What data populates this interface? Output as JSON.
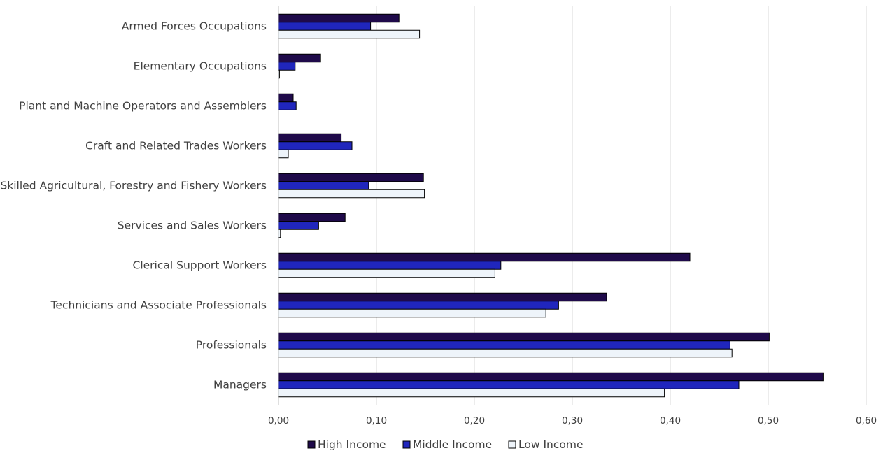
{
  "chart_data": {
    "type": "bar",
    "orientation": "horizontal",
    "title": "",
    "xlabel": "",
    "ylabel": "",
    "categories": [
      "Armed Forces Occupations",
      "Elementary Occupations",
      "Plant and Machine Operators and Assemblers",
      "Craft and Related Trades Workers",
      "Skilled Agricultural, Forestry and Fishery Workers",
      "Services and Sales Workers",
      "Clerical Support Workers",
      "Technicians and Associate Professionals",
      "Professionals",
      "Managers"
    ],
    "series": [
      {
        "name": "High Income",
        "color": "#1f0a4a",
        "values": [
          0.123,
          0.043,
          0.015,
          0.064,
          0.148,
          0.068,
          0.42,
          0.335,
          0.501,
          0.556
        ]
      },
      {
        "name": "Middle Income",
        "color": "#2026bd",
        "values": [
          0.094,
          0.017,
          0.018,
          0.075,
          0.092,
          0.041,
          0.227,
          0.286,
          0.461,
          0.47
        ]
      },
      {
        "name": "Low Income",
        "color": "#eef4fa",
        "values": [
          0.144,
          0.001,
          0.0,
          0.01,
          0.149,
          0.002,
          0.221,
          0.273,
          0.463,
          0.394
        ]
      }
    ],
    "xlim": [
      0,
      0.6
    ],
    "xticks": [
      0.0,
      0.1,
      0.2,
      0.3,
      0.4,
      0.5,
      0.6
    ],
    "xtick_labels": [
      "0,00",
      "0,10",
      "0,20",
      "0,30",
      "0,40",
      "0,50",
      "0,60"
    ],
    "grid": "vertical",
    "legend_position": "bottom-center"
  }
}
